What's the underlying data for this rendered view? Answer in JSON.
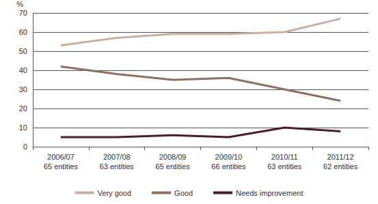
{
  "chart_data": {
    "type": "line",
    "ylabel": "%",
    "categories": [
      "2006/07\n65 entities",
      "2007/08\n63 entities",
      "2008/09\n65 entities",
      "2009/10\n66 entities",
      "2010/11\n63 entities",
      "2011/12\n62 entities"
    ],
    "series": [
      {
        "name": "Very good",
        "color": "#c9aea3",
        "values": [
          53,
          57,
          59,
          59,
          60,
          67
        ]
      },
      {
        "name": "Good",
        "color": "#8d6e63",
        "values": [
          42,
          38,
          35,
          36,
          30,
          24
        ]
      },
      {
        "name": "Needs improvement",
        "color": "#4b1c25",
        "values": [
          5,
          5,
          6,
          5,
          10,
          8
        ]
      }
    ],
    "ylim": [
      0,
      70
    ],
    "yticks": [
      0,
      10,
      20,
      30,
      40,
      50,
      60,
      70
    ],
    "grid": true,
    "legend": "bottom"
  }
}
